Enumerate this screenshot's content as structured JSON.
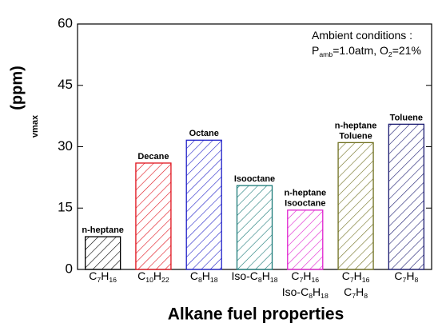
{
  "chart_data": {
    "type": "bar",
    "ylabel": "(ppm)",
    "ylabel_sub": "vmax",
    "xlabel": "Alkane fuel properties",
    "annotation": [
      [
        "Ambient conditions :"
      ],
      [
        "P",
        "amb",
        "=1.0atm, O",
        "2",
        "=21%"
      ]
    ],
    "categories": [
      [
        [
          "C",
          "7",
          "H",
          "16"
        ]
      ],
      [
        [
          "C",
          "10",
          "H",
          "22"
        ]
      ],
      [
        [
          "C",
          "8",
          "H",
          "18"
        ]
      ],
      [
        [
          "Iso-C",
          "8",
          "H",
          "18"
        ]
      ],
      [
        [
          "C",
          "7",
          "H",
          "16"
        ],
        [
          "Iso-C",
          "8",
          "H",
          "18"
        ]
      ],
      [
        [
          "C",
          "7",
          "H",
          "16"
        ],
        [
          "C",
          "7",
          "H",
          "8"
        ]
      ],
      [
        [
          "C",
          "7",
          "H",
          "8"
        ]
      ]
    ],
    "bar_labels": [
      [
        "n-heptane"
      ],
      [
        "Decane"
      ],
      [
        "Octane"
      ],
      [
        "Isooctane"
      ],
      [
        "n-heptane",
        "Isooctane"
      ],
      [
        "n-heptane",
        "Toluene"
      ],
      [
        "Toluene"
      ]
    ],
    "values": [
      8,
      26,
      31.6,
      20.5,
      14.5,
      31,
      35.5
    ],
    "colors": [
      "#000000",
      "#e0101a",
      "#2020c8",
      "#1a7a78",
      "#e020d0",
      "#707020",
      "#1a1a70"
    ],
    "ylim": [
      0,
      60
    ],
    "yticks": [
      0,
      15,
      30,
      45,
      60
    ]
  }
}
